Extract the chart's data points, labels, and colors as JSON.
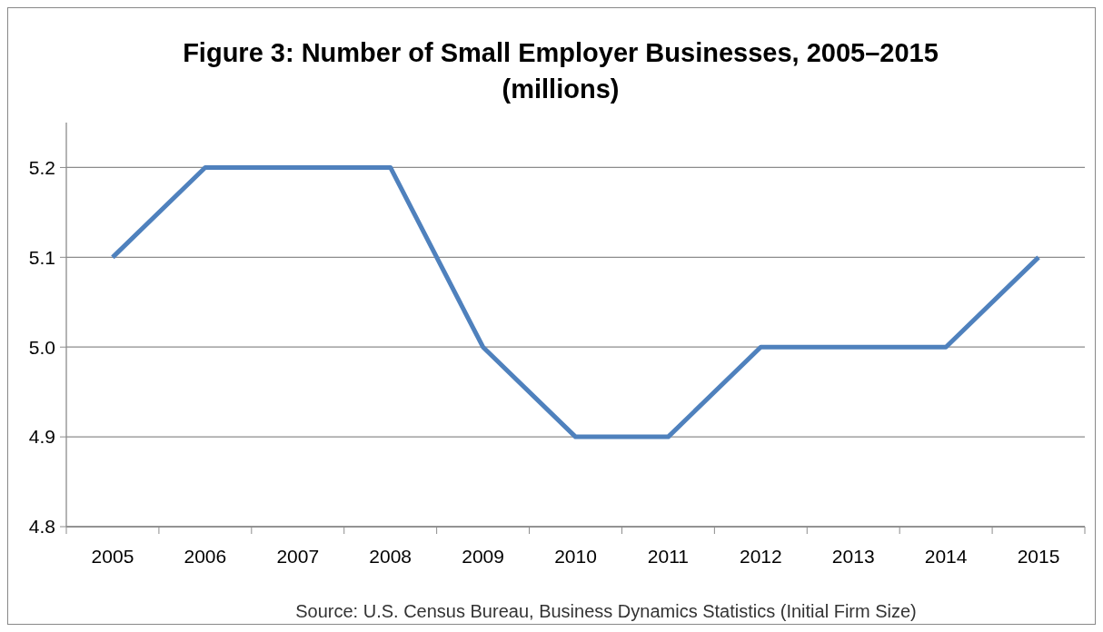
{
  "chart_data": {
    "type": "line",
    "title": "Figure 3: Number of Small Employer Businesses, 2005–2015\n(millions)",
    "categories": [
      "2005",
      "2006",
      "2007",
      "2008",
      "2009",
      "2010",
      "2011",
      "2012",
      "2013",
      "2014",
      "2015"
    ],
    "series": [
      {
        "color": "#4f81bd",
        "values": [
          5.1,
          5.2,
          5.2,
          5.2,
          5.0,
          4.9,
          4.9,
          5.0,
          5.0,
          5.0,
          5.1
        ]
      }
    ],
    "ylim": [
      4.8,
      5.25
    ],
    "yticks": [
      {
        "value": 4.8,
        "label": "4.8"
      },
      {
        "value": 4.9,
        "label": "4.9"
      },
      {
        "value": 5.0,
        "label": "5.0"
      },
      {
        "value": 5.1,
        "label": "5.1"
      },
      {
        "value": 5.2,
        "label": "5.2"
      }
    ],
    "grid": "y",
    "marker": "none",
    "line_style": "solid",
    "annotations": [
      "Source: U.S. Census Bureau, Business Dynamics Statistics (Initial Firm Size)"
    ]
  }
}
